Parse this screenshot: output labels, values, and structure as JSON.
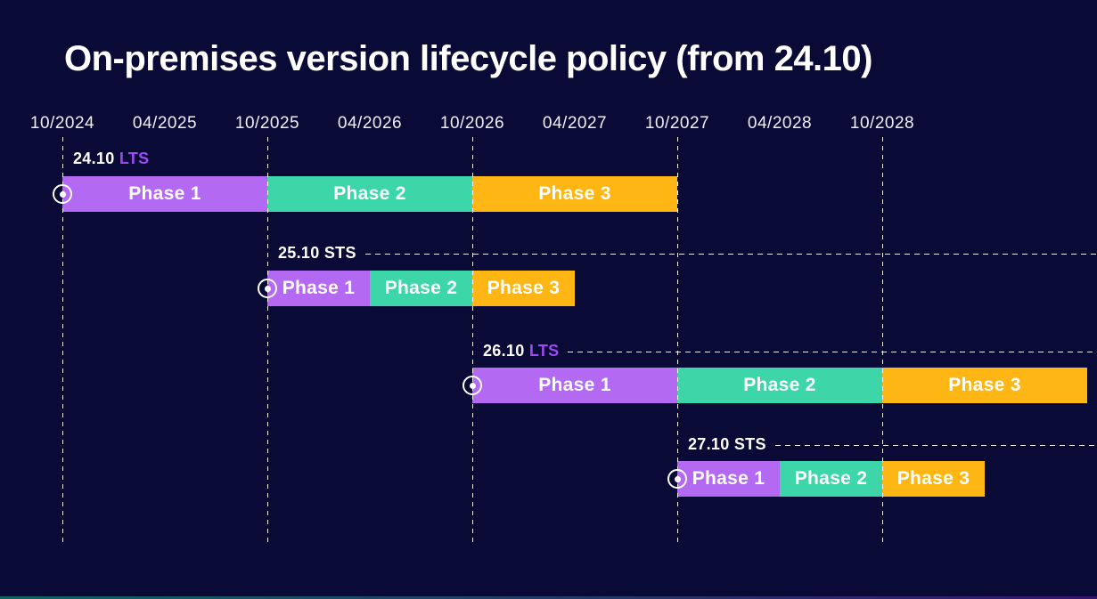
{
  "title": "On-premises version lifecycle policy (from 24.10)",
  "colors": {
    "background": "#0a0a37",
    "phase1": "#b469f2",
    "phase2": "#3cd6a8",
    "phase3": "#fdb613",
    "lts_channel_label": "#9b4bf0",
    "sts_channel_label": "#ffffff",
    "gridline": "#ffffff",
    "footer_gradient_left": "#11625f",
    "footer_gradient_right": "#35156f"
  },
  "chart_data": {
    "type": "gantt",
    "title": "On-premises version lifecycle policy (from 24.10)",
    "x_tick_labels": [
      "10/2024",
      "04/2025",
      "10/2025",
      "04/2026",
      "10/2026",
      "04/2027",
      "10/2027",
      "04/2028",
      "10/2028"
    ],
    "x_gridlines": [
      "10/2024",
      "10/2025",
      "10/2026",
      "10/2027",
      "10/2028"
    ],
    "x_range": [
      "10/2024",
      "10/2029"
    ],
    "phase_names": [
      "Phase 1",
      "Phase 2",
      "Phase 3"
    ],
    "series": [
      {
        "version": "24.10",
        "channel": "LTS",
        "phases": [
          {
            "label": "Phase 1",
            "start": "10/2024",
            "end": "10/2025"
          },
          {
            "label": "Phase 2",
            "start": "10/2025",
            "end": "10/2026"
          },
          {
            "label": "Phase 3",
            "start": "10/2026",
            "end": "10/2027"
          }
        ]
      },
      {
        "version": "25.10",
        "channel": "STS",
        "phases": [
          {
            "label": "Phase 1",
            "start": "10/2025",
            "end": "04/2026"
          },
          {
            "label": "Phase 2",
            "start": "04/2026",
            "end": "10/2026"
          },
          {
            "label": "Phase 3",
            "start": "10/2026",
            "end": "04/2027"
          }
        ]
      },
      {
        "version": "26.10",
        "channel": "LTS",
        "phases": [
          {
            "label": "Phase 1",
            "start": "10/2026",
            "end": "10/2027"
          },
          {
            "label": "Phase 2",
            "start": "10/2027",
            "end": "10/2028"
          },
          {
            "label": "Phase 3",
            "start": "10/2028",
            "end": "10/2029"
          }
        ]
      },
      {
        "version": "27.10",
        "channel": "STS",
        "phases": [
          {
            "label": "Phase 1",
            "start": "10/2027",
            "end": "04/2028"
          },
          {
            "label": "Phase 2",
            "start": "04/2028",
            "end": "10/2028"
          },
          {
            "label": "Phase 3",
            "start": "10/2028",
            "end": "04/2029"
          }
        ]
      }
    ]
  }
}
